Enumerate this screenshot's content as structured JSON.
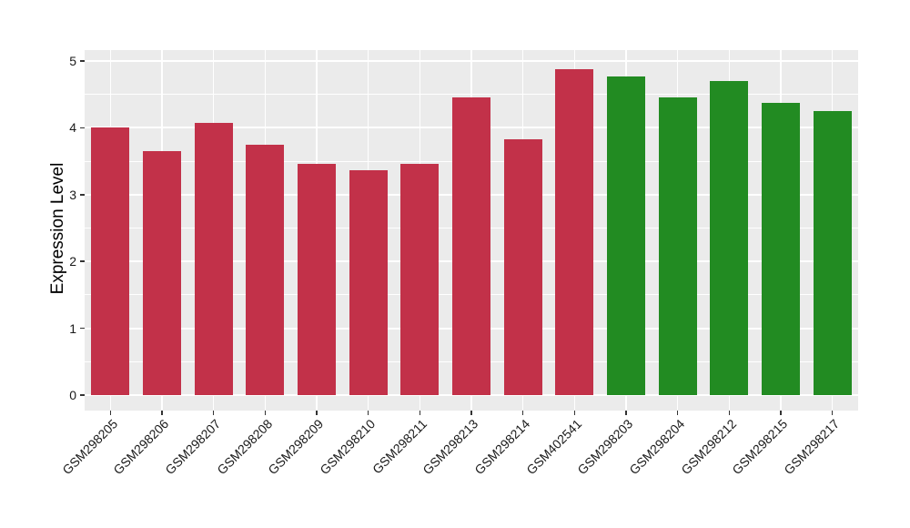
{
  "chart_data": {
    "type": "bar",
    "title": "",
    "xlabel": "",
    "ylabel": "Expression Level",
    "ylim": [
      0,
      5
    ],
    "yticks": [
      0,
      1,
      2,
      3,
      4,
      5
    ],
    "legend": "none",
    "grid": "ggplot-style: gray panel, white major gridlines at integers, white minor gridlines at halves, white vertical line at each category center",
    "categories": [
      "GSM298205",
      "GSM298206",
      "GSM298207",
      "GSM298208",
      "GSM298209",
      "GSM298210",
      "GSM298211",
      "GSM298213",
      "GSM298214",
      "GSM402541",
      "GSM298203",
      "GSM298204",
      "GSM298212",
      "GSM298215",
      "GSM298217"
    ],
    "values": [
      4.0,
      3.65,
      4.07,
      3.75,
      3.46,
      3.37,
      3.46,
      4.45,
      3.83,
      4.88,
      4.77,
      4.45,
      4.7,
      4.38,
      4.25
    ],
    "bar_colors": [
      "#C23149",
      "#C23149",
      "#C23149",
      "#C23149",
      "#C23149",
      "#C23149",
      "#C23149",
      "#C23149",
      "#C23149",
      "#C23149",
      "#228B22",
      "#228B22",
      "#228B22",
      "#228B22",
      "#228B22"
    ],
    "groups": [
      {
        "color": "#C23149",
        "count": 10
      },
      {
        "color": "#228B22",
        "count": 5
      }
    ]
  },
  "style": {
    "panel_bg": "#EBEBEB",
    "gridline_color": "#FFFFFF",
    "tick_color": "#333333",
    "tick_text_color": "#1a1a1a"
  }
}
